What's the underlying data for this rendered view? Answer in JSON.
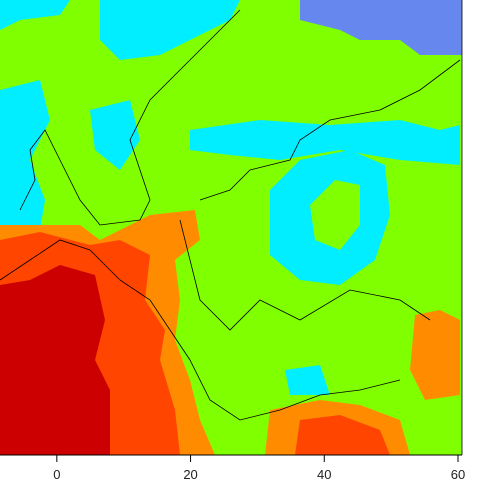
{
  "map": {
    "xlim": [
      -8.5,
      60.6
    ],
    "xticks": [
      0,
      20,
      40,
      60
    ]
  }
}
